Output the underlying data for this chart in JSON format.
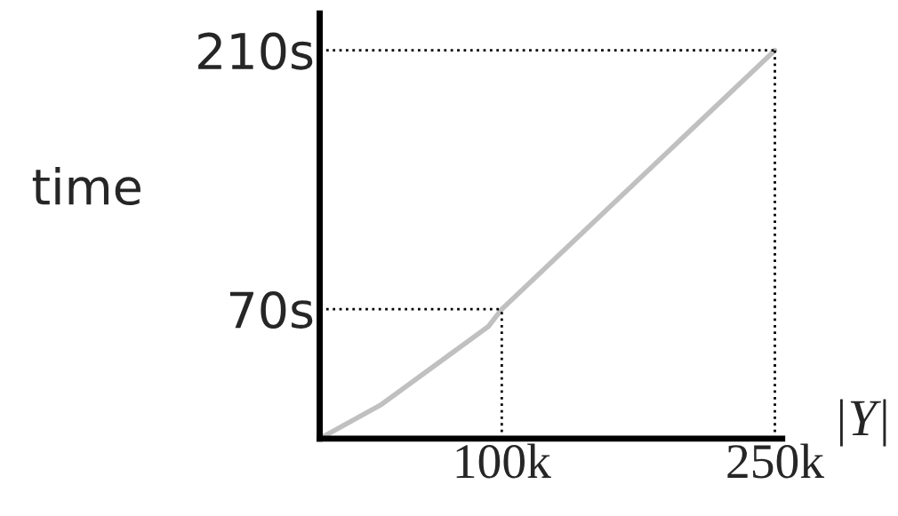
{
  "chart_data": {
    "type": "line",
    "xlabel": "|Y|",
    "ylabel": "time",
    "x": [
      0,
      34000,
      77000,
      92700,
      100000,
      250000
    ],
    "series": [
      {
        "color": "#c0c0c0",
        "values": [
          0,
          18.5,
          49.4,
          60.7,
          70,
          210
        ]
      }
    ],
    "xlim": [
      0,
      254000
    ],
    "ylim": [
      0,
      230
    ],
    "xticks": [
      {
        "value": 100000,
        "label": "100k"
      },
      {
        "value": 250000,
        "label": "250k"
      }
    ],
    "yticks": [
      {
        "value": 70,
        "label": "70s"
      },
      {
        "value": 210,
        "label": "210s"
      }
    ],
    "ref_lines": [
      {
        "axis": "y",
        "value": 70,
        "line_style": "dotted",
        "color": "#000000"
      },
      {
        "axis": "y",
        "value": 210,
        "line_style": "dotted",
        "color": "#000000"
      },
      {
        "axis": "x",
        "value": 100000,
        "line_style": "dotted",
        "color": "#000000"
      },
      {
        "axis": "x",
        "value": 250000,
        "line_style": "dotted",
        "color": "#000000"
      }
    ],
    "grid": false,
    "legend": false
  }
}
